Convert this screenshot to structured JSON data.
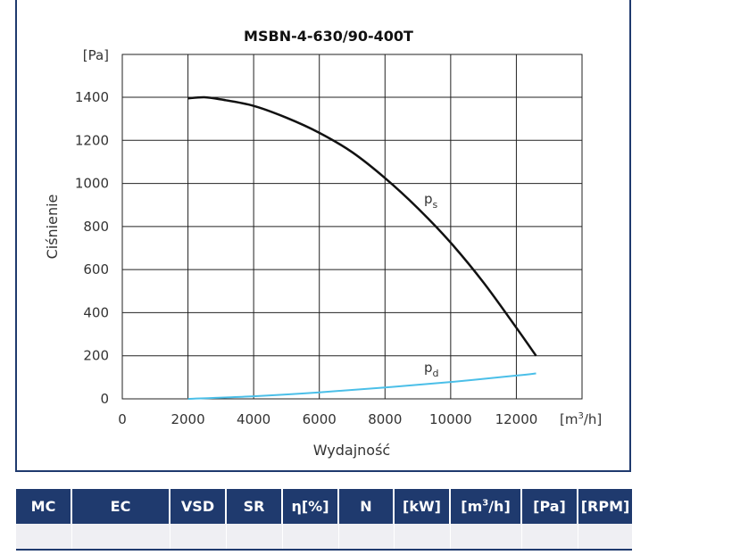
{
  "chart_data": {
    "type": "line",
    "title": "MSBN-4-630/90-400T",
    "xlabel": "Wydajność",
    "ylabel": "Ciśnienie",
    "x_unit": "[m3/h]",
    "y_unit": "[Pa]",
    "xlim": [
      0,
      14000
    ],
    "ylim": [
      0,
      1400
    ],
    "x_ticks": [
      0,
      2000,
      4000,
      6000,
      8000,
      10000,
      12000
    ],
    "y_ticks": [
      0,
      200,
      400,
      600,
      800,
      1000,
      1200,
      1400
    ],
    "grid": true,
    "series": [
      {
        "name": "ps",
        "label_main": "p",
        "label_sub": "s",
        "color": "#111111",
        "x": [
          2000,
          2500,
          3000,
          4000,
          5000,
          6000,
          7000,
          8000,
          9000,
          10000,
          11000,
          12000,
          12600
        ],
        "y": [
          1395,
          1400,
          1390,
          1360,
          1305,
          1235,
          1145,
          1025,
          885,
          725,
          540,
          330,
          200
        ]
      },
      {
        "name": "pd",
        "label_main": "p",
        "label_sub": "d",
        "color": "#4bbfe8",
        "x": [
          2000,
          4000,
          6000,
          8000,
          10000,
          12000,
          12600
        ],
        "y": [
          0,
          12,
          30,
          53,
          78,
          108,
          118
        ]
      }
    ]
  },
  "table": {
    "headers": [
      "MC",
      "EC",
      "VSD",
      "SR",
      "η[%]",
      "N",
      "[kW]",
      "[m3/h]",
      "[Pa]",
      "[RPM]"
    ],
    "row": [
      "",
      "",
      "",
      "",
      "",
      "",
      "",
      "",
      "",
      ""
    ]
  }
}
